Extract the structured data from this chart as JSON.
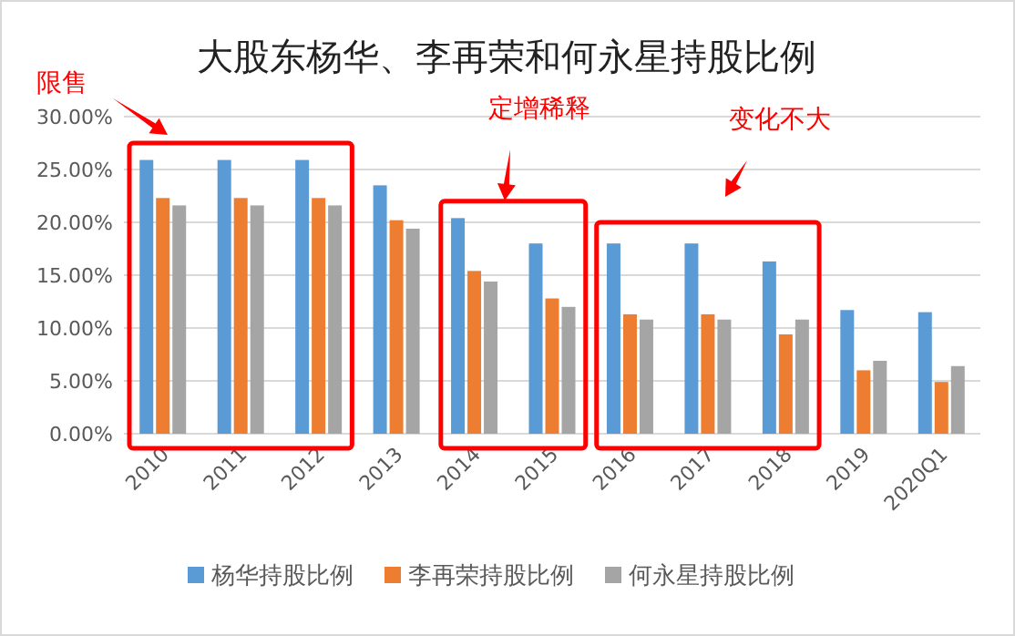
{
  "chart_data": {
    "type": "bar",
    "title": "大股东杨华、李再荣和何永星持股比例",
    "categories": [
      "2010",
      "2011",
      "2012",
      "2013",
      "2014",
      "2015",
      "2016",
      "2017",
      "2018",
      "2019",
      "2020Q1"
    ],
    "series": [
      {
        "name": "杨华持股比例",
        "color": "#5b9bd5",
        "values": [
          25.9,
          25.9,
          25.9,
          23.5,
          20.4,
          18.0,
          18.0,
          18.0,
          16.3,
          11.7,
          11.5
        ]
      },
      {
        "name": "李再荣持股比例",
        "color": "#ed7d31",
        "values": [
          22.3,
          22.3,
          22.3,
          20.2,
          15.4,
          12.8,
          11.3,
          11.3,
          9.4,
          6.0,
          4.9
        ]
      },
      {
        "name": "何永星持股比例",
        "color": "#a5a5a5",
        "values": [
          21.6,
          21.6,
          21.6,
          19.4,
          14.4,
          12.0,
          10.8,
          10.8,
          10.8,
          6.9,
          6.4
        ]
      }
    ],
    "ylim": [
      0,
      30
    ],
    "yticks": [
      {
        "value": 0,
        "label": "0.00%"
      },
      {
        "value": 5,
        "label": "5.00%"
      },
      {
        "value": 10,
        "label": "10.00%"
      },
      {
        "value": 15,
        "label": "15.00%"
      },
      {
        "value": 20,
        "label": "20.00%"
      },
      {
        "value": 25,
        "label": "25.00%"
      },
      {
        "value": 30,
        "label": "30.00%"
      }
    ],
    "grid": "y",
    "legend": "bottom",
    "annotations": [
      "限售",
      "定增稀释",
      "变化不大"
    ]
  }
}
